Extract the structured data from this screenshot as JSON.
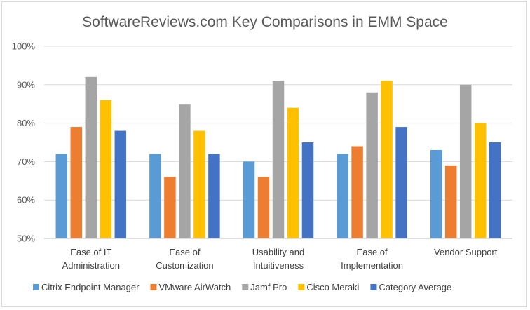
{
  "chart_data": {
    "type": "bar",
    "title": "SoftwareReviews.com Key Comparisons in EMM Space",
    "xlabel": "",
    "ylabel": "",
    "ylim": [
      50,
      100
    ],
    "yticks": [
      "50%",
      "60%",
      "70%",
      "80%",
      "90%",
      "100%"
    ],
    "ytick_values": [
      50,
      60,
      70,
      80,
      90,
      100
    ],
    "grid": true,
    "legend_position": "bottom",
    "categories": [
      [
        "Ease of IT",
        "Administration"
      ],
      [
        "Ease of",
        "Customization"
      ],
      [
        "Usability and",
        "Intuitiveness"
      ],
      [
        "Ease of",
        "Implementation"
      ],
      [
        "Vendor Support"
      ]
    ],
    "series": [
      {
        "name": "Citrix Endpoint Manager",
        "color": "#5b9bd5",
        "values": [
          72,
          72,
          70,
          72,
          73
        ]
      },
      {
        "name": "VMware AirWatch",
        "color": "#ed7d31",
        "values": [
          79,
          66,
          66,
          74,
          69
        ]
      },
      {
        "name": "Jamf Pro",
        "color": "#a5a5a5",
        "values": [
          92,
          85,
          91,
          88,
          90
        ]
      },
      {
        "name": "Cisco Meraki",
        "color": "#ffc000",
        "values": [
          86,
          78,
          84,
          91,
          80
        ]
      },
      {
        "name": "Category Average",
        "color": "#4472c4",
        "values": [
          78,
          72,
          75,
          79,
          75
        ]
      }
    ]
  }
}
